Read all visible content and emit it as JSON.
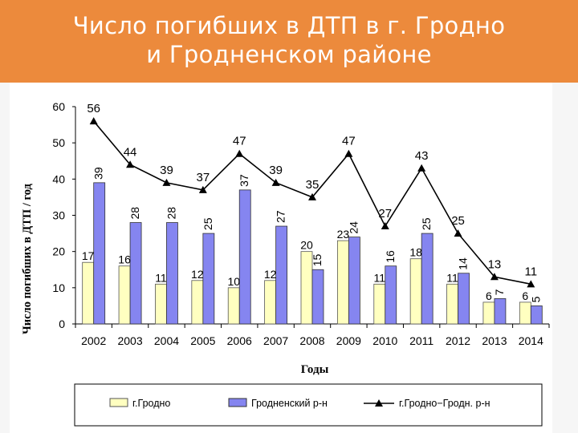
{
  "slide": {
    "title_line1": "Число погибших в ДТП в г. Гродно",
    "title_line2": "и Гродненском районе"
  },
  "colors": {
    "banner": "#ec8a3c",
    "grodno": "#ffffc0",
    "district": "#8585f0",
    "total_line": "#000000"
  },
  "chart_data": {
    "type": "bar",
    "title": "",
    "xlabel": "Годы",
    "ylabel": "Число погибших в ДТП / год",
    "ylim": [
      0,
      60
    ],
    "yticks": [
      "0",
      "10",
      "20",
      "30",
      "40",
      "50",
      "60"
    ],
    "grid": false,
    "legend_position": "bottom",
    "categories": [
      "2002",
      "2003",
      "2004",
      "2005",
      "2006",
      "2007",
      "2008",
      "2009",
      "2010",
      "2011",
      "2012",
      "2013",
      "2014"
    ],
    "series": [
      {
        "name": "г.Гродно",
        "type": "bar",
        "values": [
          17,
          16,
          11,
          12,
          10,
          12,
          20,
          23,
          11,
          18,
          11,
          6,
          6
        ],
        "labels": [
          "17",
          "16",
          "11",
          "12",
          "10",
          "12",
          "20",
          "23",
          "11",
          "18",
          "11",
          "6",
          "6"
        ]
      },
      {
        "name": "Гродненский р-н",
        "type": "bar",
        "values": [
          39,
          28,
          28,
          25,
          37,
          27,
          15,
          24,
          16,
          25,
          14,
          7,
          5
        ],
        "labels": [
          "39",
          "28",
          "28",
          "25",
          "37",
          "27",
          "15",
          "24",
          "16",
          "25",
          "14",
          "7",
          "5"
        ]
      },
      {
        "name": "г.Гродно−Гродн. р-н",
        "type": "line",
        "marker": "triangle",
        "values": [
          56,
          44,
          39,
          37,
          47,
          39,
          35,
          47,
          27,
          43,
          25,
          13,
          11
        ],
        "labels": [
          "56",
          "44",
          "39",
          "37",
          "47",
          "39",
          "35",
          "47",
          "27",
          "43",
          "25",
          "13",
          "11"
        ]
      }
    ]
  }
}
